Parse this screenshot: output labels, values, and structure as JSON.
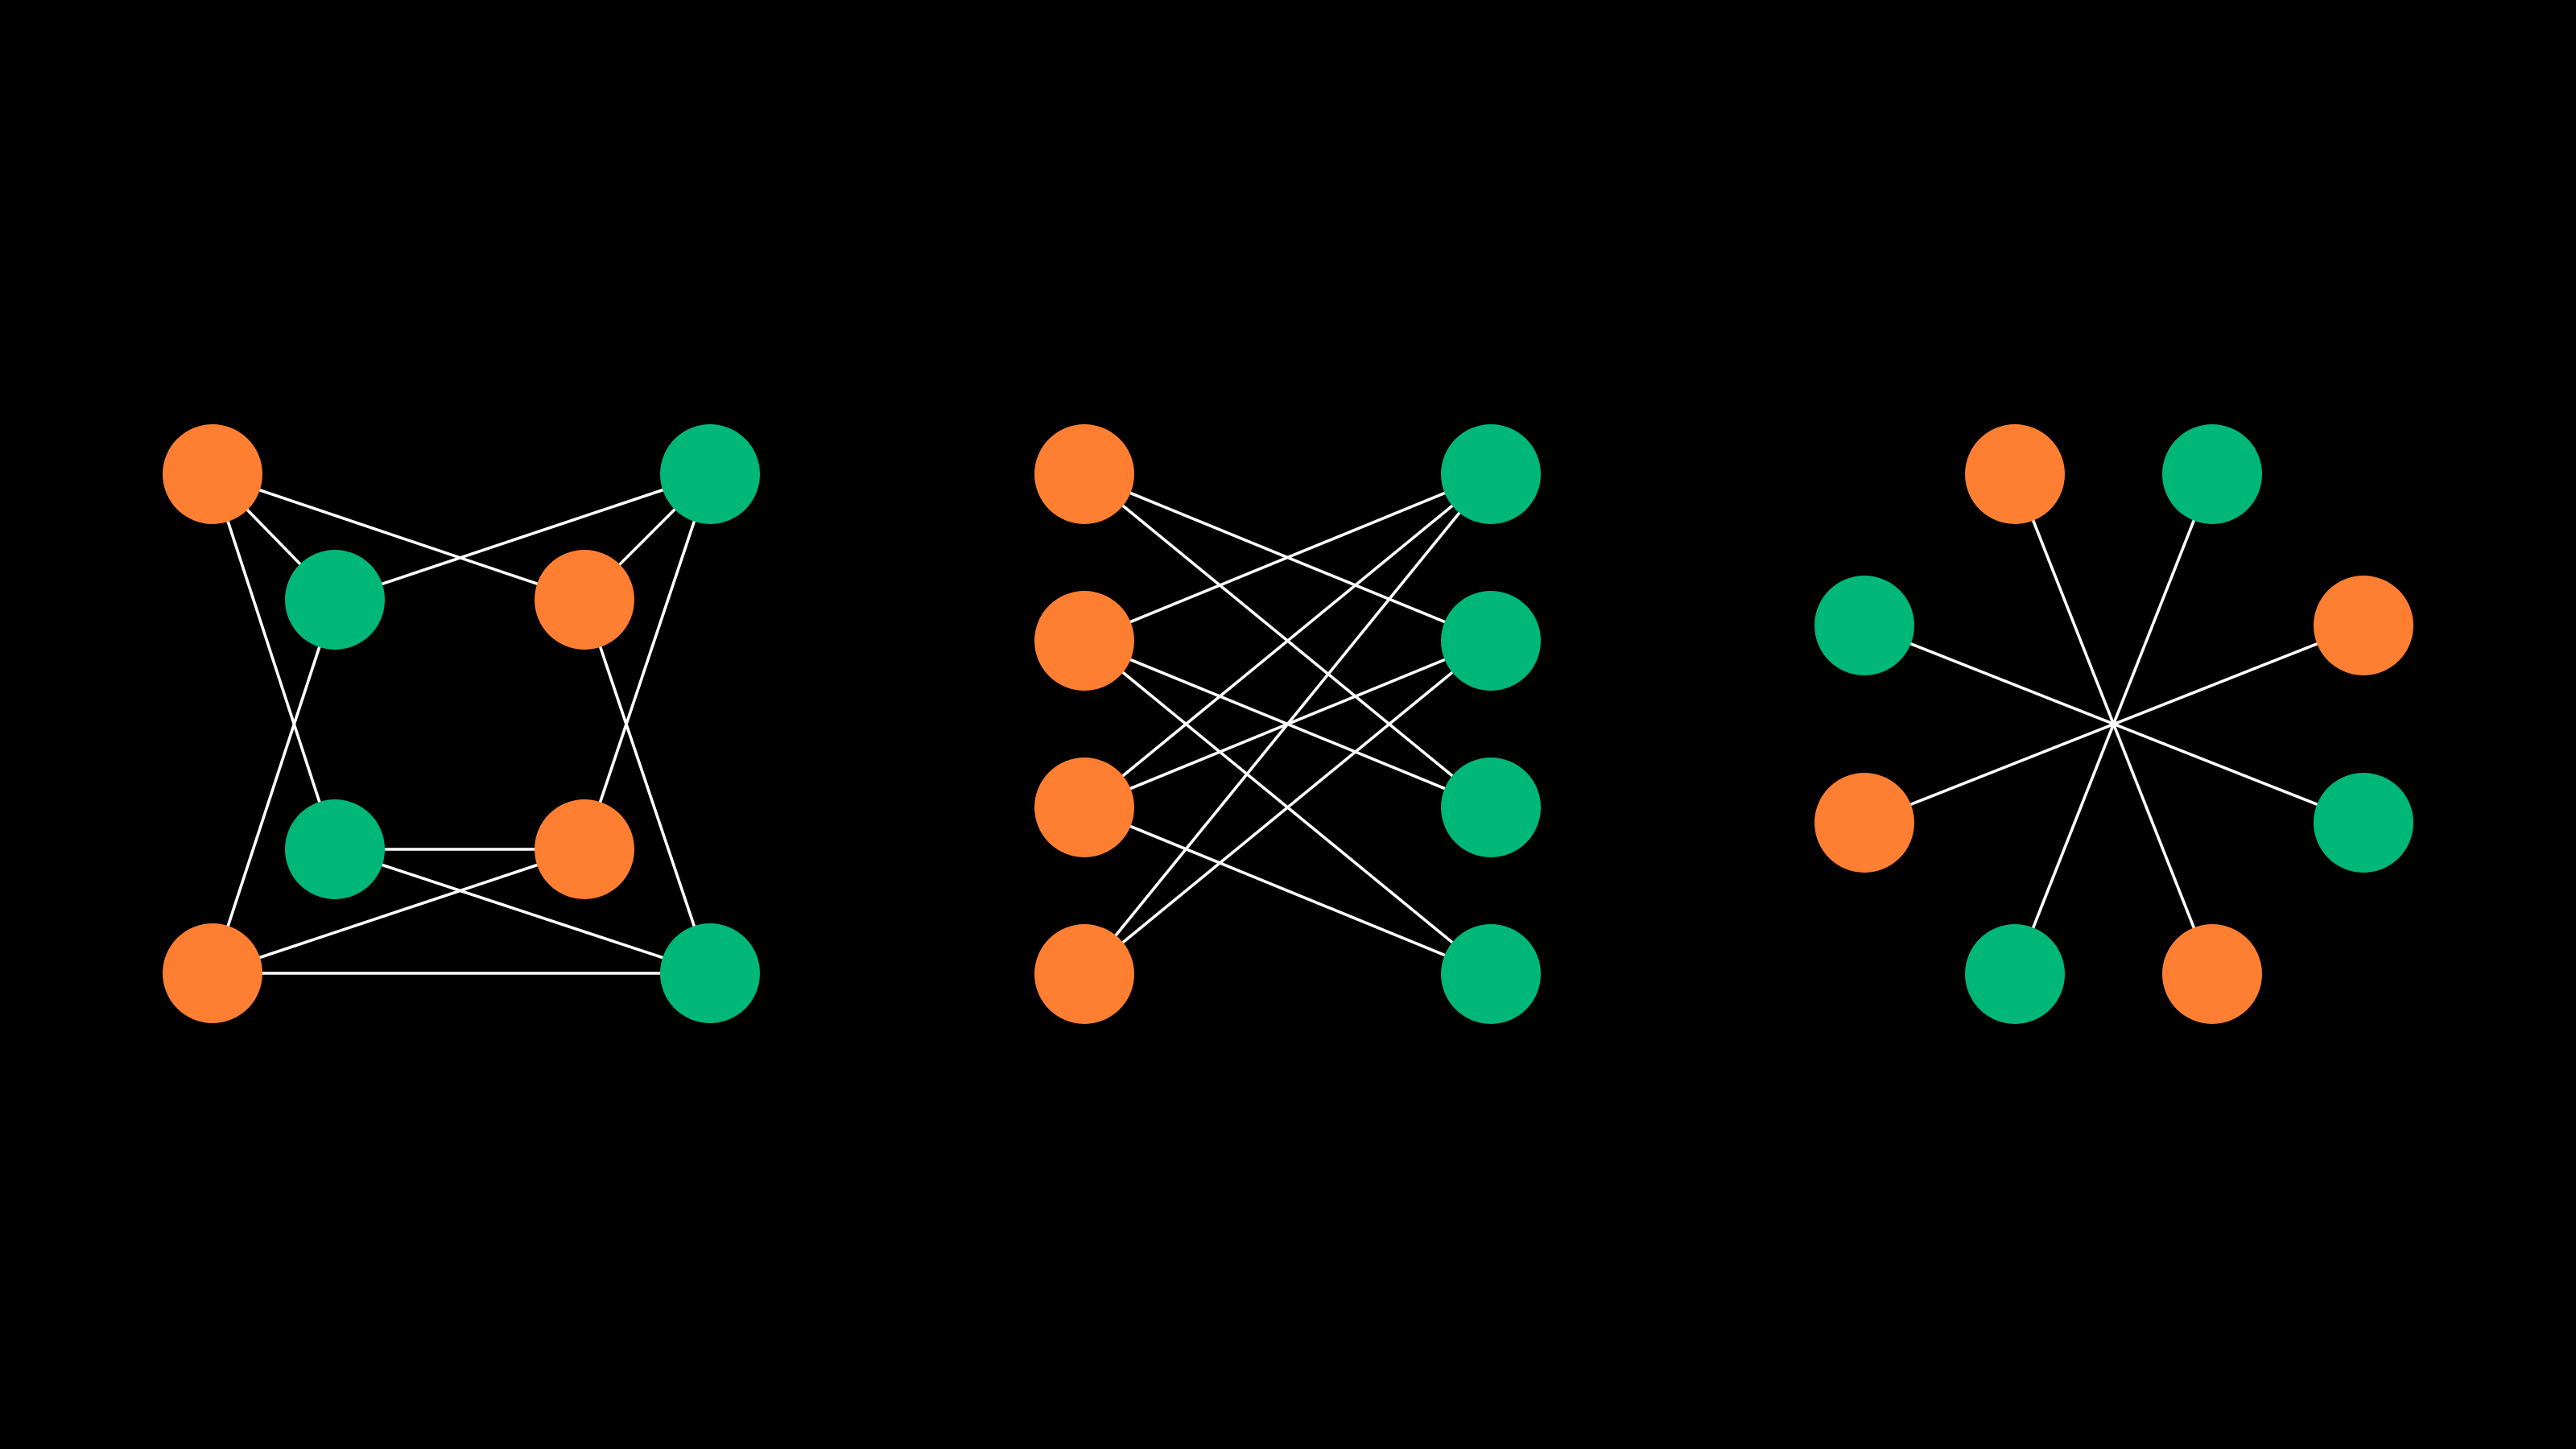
{
  "colors": {
    "background": "#000000",
    "orange": "#FF7F32",
    "green": "#00B77A",
    "edge": "#FFFFFF"
  },
  "graphs": [
    {
      "name": "cube-graph",
      "nodes": [
        {
          "id": "a",
          "color": "orange"
        },
        {
          "id": "b",
          "color": "green"
        },
        {
          "id": "c",
          "color": "green"
        },
        {
          "id": "d",
          "color": "orange"
        },
        {
          "id": "e",
          "color": "green"
        },
        {
          "id": "f",
          "color": "orange"
        },
        {
          "id": "g",
          "color": "orange"
        },
        {
          "id": "h",
          "color": "green"
        }
      ],
      "edges": [
        [
          "a",
          "d"
        ],
        [
          "a",
          "c"
        ],
        [
          "a",
          "e"
        ],
        [
          "d",
          "b"
        ],
        [
          "d",
          "h"
        ],
        [
          "b",
          "c"
        ],
        [
          "b",
          "f"
        ],
        [
          "c",
          "g"
        ],
        [
          "e",
          "f"
        ],
        [
          "e",
          "h"
        ],
        [
          "f",
          "g"
        ],
        [
          "g",
          "h"
        ]
      ]
    },
    {
      "name": "bipartite-graph",
      "nodes": [
        {
          "id": "l1",
          "color": "orange"
        },
        {
          "id": "l2",
          "color": "orange"
        },
        {
          "id": "l3",
          "color": "orange"
        },
        {
          "id": "l4",
          "color": "orange"
        },
        {
          "id": "r1",
          "color": "green"
        },
        {
          "id": "r2",
          "color": "green"
        },
        {
          "id": "r3",
          "color": "green"
        },
        {
          "id": "r4",
          "color": "green"
        }
      ],
      "edges": [
        [
          "l1",
          "r2"
        ],
        [
          "l1",
          "r3"
        ],
        [
          "l2",
          "r1"
        ],
        [
          "l2",
          "r3"
        ],
        [
          "l2",
          "r4"
        ],
        [
          "l3",
          "r1"
        ],
        [
          "l3",
          "r2"
        ],
        [
          "l3",
          "r4"
        ],
        [
          "l4",
          "r1"
        ],
        [
          "l4",
          "r2"
        ]
      ]
    },
    {
      "name": "star-graph",
      "nodes": [
        {
          "id": "s1",
          "color": "orange"
        },
        {
          "id": "s2",
          "color": "green"
        },
        {
          "id": "s3",
          "color": "orange"
        },
        {
          "id": "s4",
          "color": "green"
        },
        {
          "id": "s5",
          "color": "orange"
        },
        {
          "id": "s6",
          "color": "green"
        },
        {
          "id": "s7",
          "color": "orange"
        },
        {
          "id": "s8",
          "color": "green"
        }
      ],
      "edges": [
        [
          "s1",
          "s5"
        ],
        [
          "s2",
          "s6"
        ],
        [
          "s3",
          "s7"
        ],
        [
          "s4",
          "s8"
        ]
      ]
    }
  ]
}
